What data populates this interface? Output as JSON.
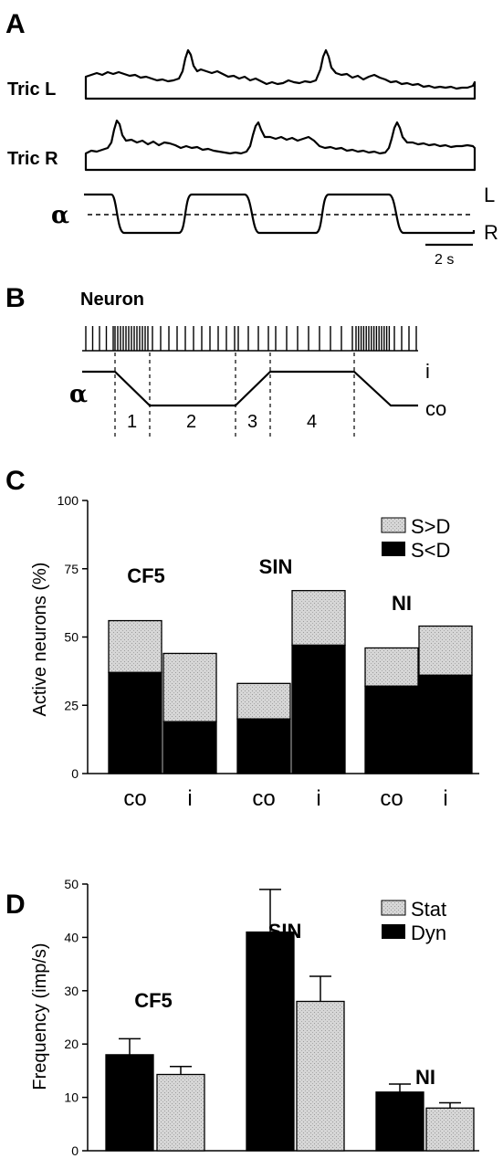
{
  "panel_a": {
    "letter": "A",
    "trace_labels": [
      "Tric L",
      "Tric R"
    ],
    "alpha_symbol": "α",
    "position_labels": [
      "L",
      "R"
    ],
    "scale_bar_label": "2 s"
  },
  "panel_b": {
    "letter": "B",
    "neuron_label": "Neuron",
    "alpha_symbol": "α",
    "position_labels": [
      "i",
      "co"
    ],
    "phase_labels": [
      "1",
      "2",
      "3",
      "4"
    ]
  },
  "chart_data": [
    {
      "panel": "C",
      "type": "bar",
      "stacked": true,
      "ylabel": "Active neurons (%)",
      "ylim": [
        0,
        100
      ],
      "yticks": [
        0,
        25,
        50,
        75,
        100
      ],
      "groups": [
        "CF5",
        "SIN",
        "NI"
      ],
      "categories": [
        "co",
        "i",
        "co",
        "i",
        "co",
        "i"
      ],
      "series": [
        {
          "name": "S<D",
          "values": [
            37,
            19,
            20,
            47,
            32,
            36
          ],
          "color": "#000000"
        },
        {
          "name": "S>D",
          "values": [
            19,
            25,
            13,
            20,
            14,
            18
          ],
          "color": "#d0d0d0"
        }
      ],
      "legend": [
        "S>D",
        "S<D"
      ],
      "legend_position": "top-right"
    },
    {
      "panel": "D",
      "type": "bar",
      "ylabel": "Frequency (imp/s)",
      "ylim": [
        0,
        50
      ],
      "yticks": [
        0,
        10,
        20,
        30,
        40,
        50
      ],
      "categories": [
        "CF5",
        "SIN",
        "NI"
      ],
      "series": [
        {
          "name": "Dyn",
          "values": [
            18,
            41,
            11
          ],
          "errors": [
            3,
            8,
            1.5
          ],
          "color": "#000000"
        },
        {
          "name": "Stat",
          "values": [
            14.3,
            28,
            8
          ],
          "errors": [
            1.5,
            4.7,
            1
          ],
          "color": "#d0d0d0"
        }
      ],
      "legend": [
        "Stat",
        "Dyn"
      ],
      "legend_position": "top-right"
    }
  ]
}
